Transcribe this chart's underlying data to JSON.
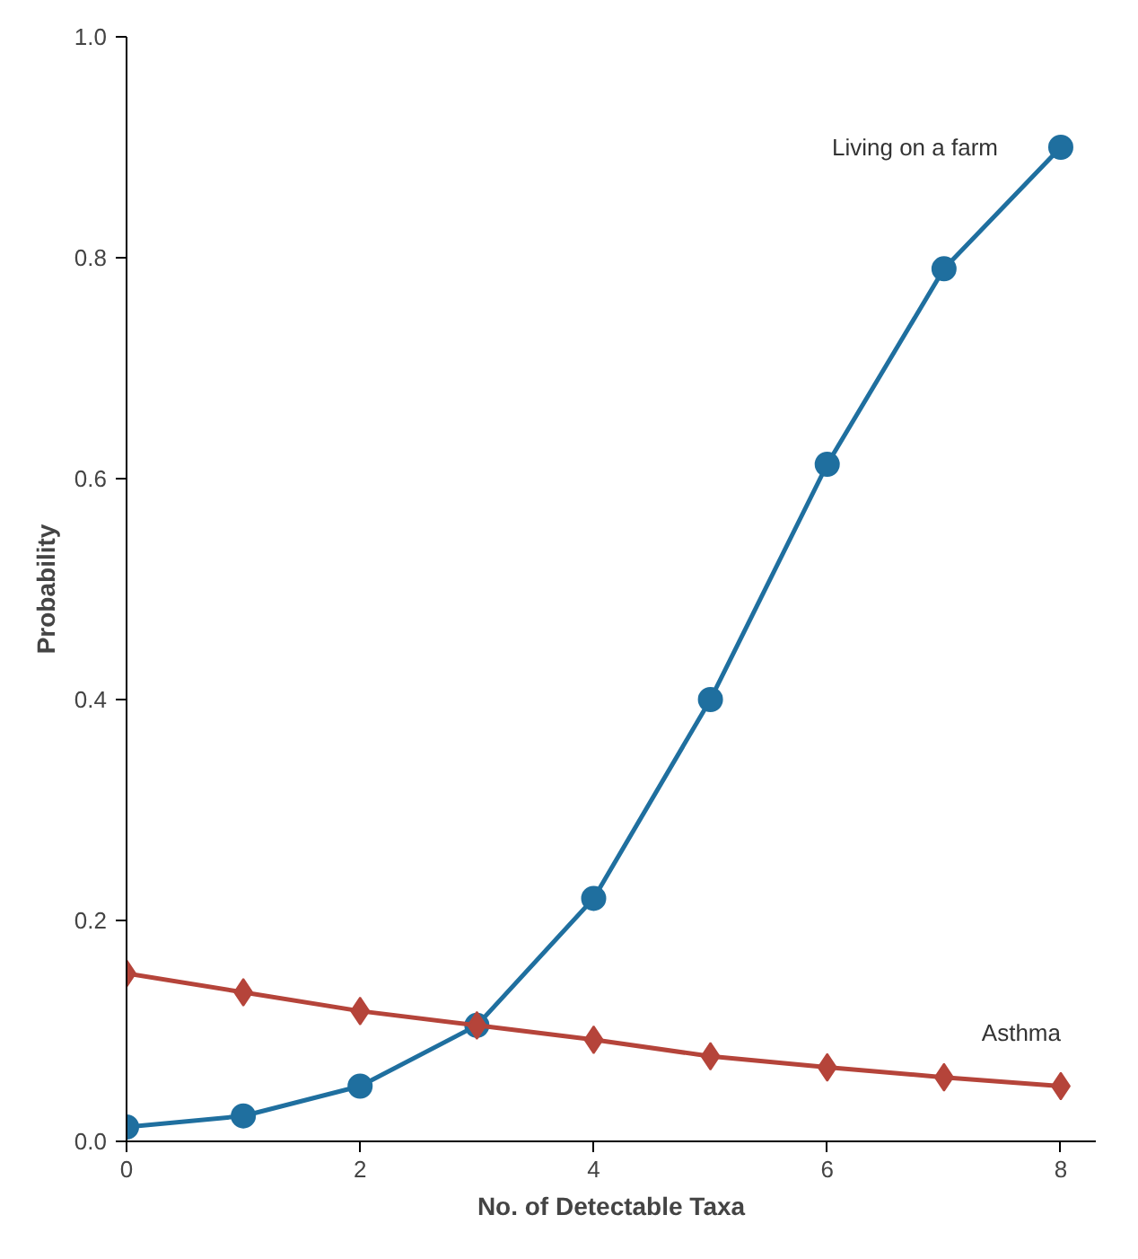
{
  "chart_data": {
    "type": "line",
    "xlabel": "No. of Detectable Taxa",
    "ylabel": "Probability",
    "x": [
      0,
      1,
      2,
      3,
      4,
      5,
      6,
      7,
      8
    ],
    "xlim": [
      0,
      8.3
    ],
    "xticks": [
      0,
      2,
      4,
      6,
      8
    ],
    "ylim": [
      0,
      1.0
    ],
    "yticks": [
      {
        "value": 0,
        "label": "0.0"
      },
      0.2,
      0.4,
      0.6,
      0.8,
      {
        "value": 1.0,
        "label": "1.0"
      }
    ],
    "grid": false,
    "line_style": "solid",
    "series": [
      {
        "name": "Living on a farm",
        "color": "#1f6f9f",
        "marker": "circle",
        "values": [
          0.013,
          0.023,
          0.05,
          0.105,
          0.22,
          0.4,
          0.613,
          0.79,
          0.9
        ]
      },
      {
        "name": "Asthma",
        "color": "#b5443a",
        "marker": "diamond",
        "values": [
          0.152,
          0.135,
          0.118,
          0.105,
          0.092,
          0.077,
          0.067,
          0.058,
          0.05
        ]
      }
    ]
  }
}
